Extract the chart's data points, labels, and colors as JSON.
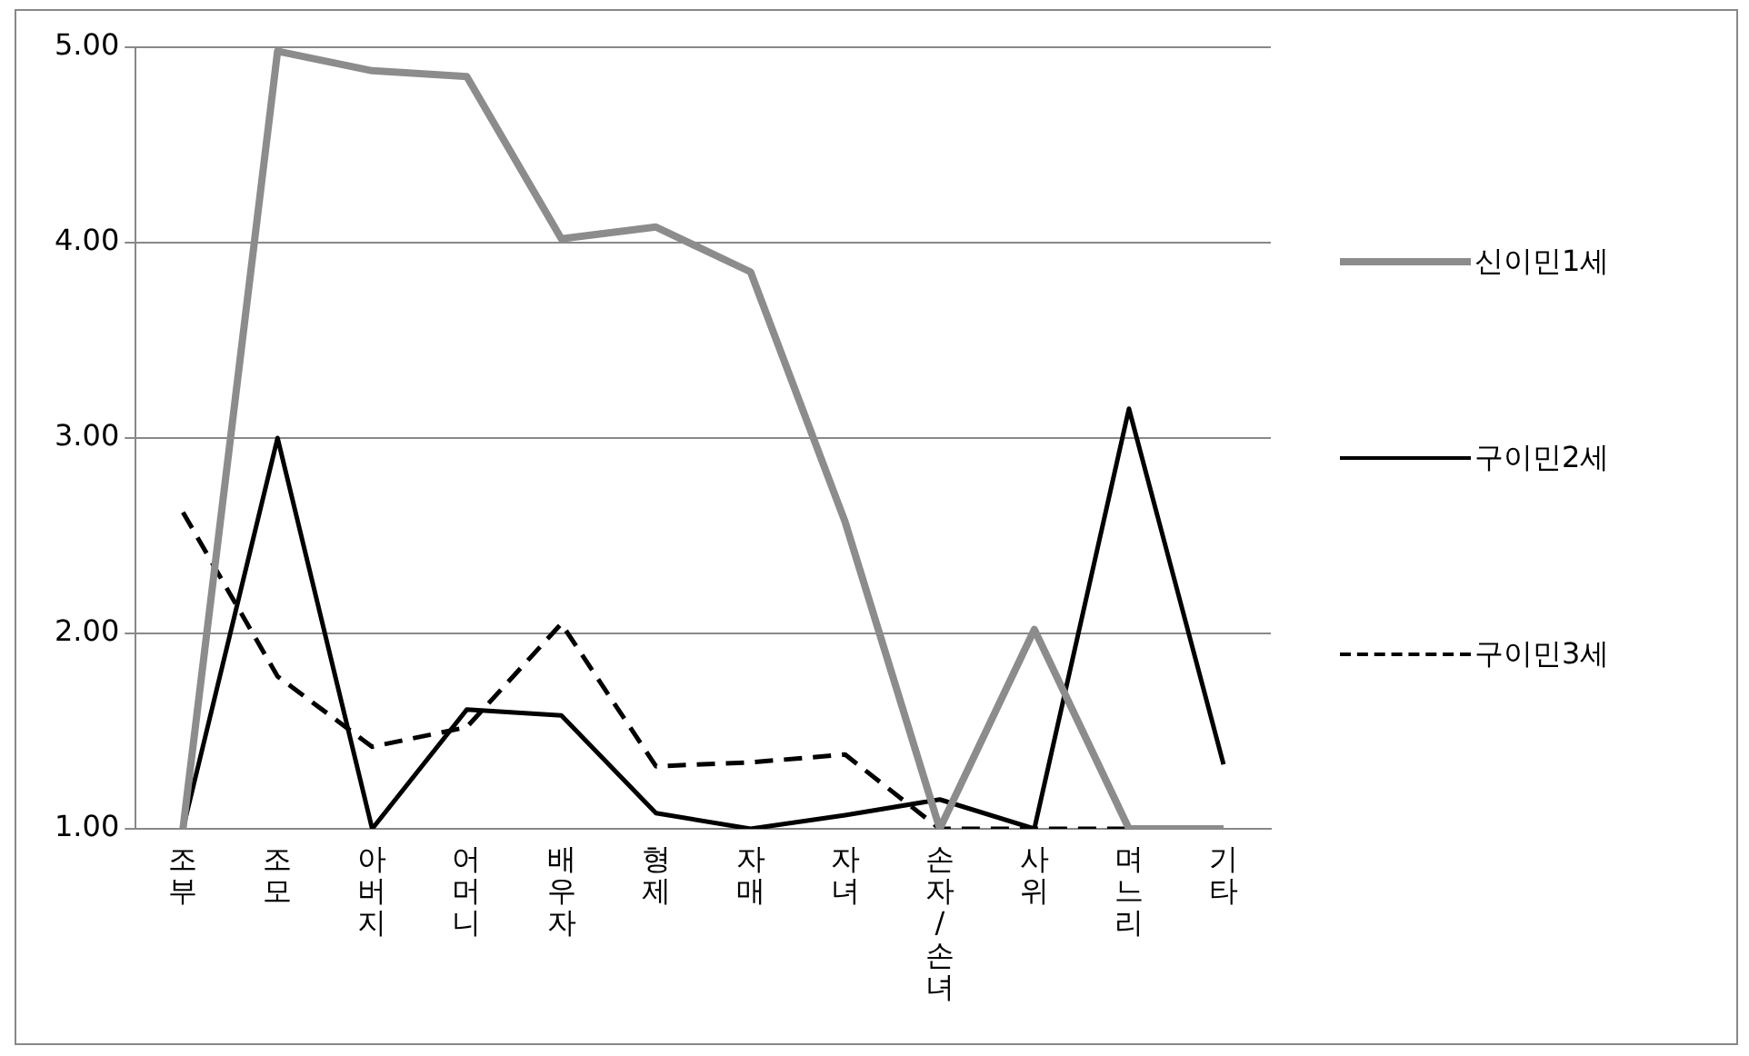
{
  "chart_data": {
    "type": "line",
    "categories": [
      "조부",
      "조모",
      "아버지",
      "어머니",
      "배우자",
      "형제",
      "자매",
      "자녀",
      "손자/손녀",
      "사위",
      "며느리",
      "기타"
    ],
    "series": [
      {
        "name": "신이민1세",
        "color": "#8c8c8c",
        "line_style": "solid",
        "values": [
          1.0,
          4.98,
          4.88,
          4.85,
          4.02,
          4.08,
          3.85,
          2.57,
          1.0,
          2.02,
          1.0,
          1.0
        ]
      },
      {
        "name": "구이민2세",
        "color": "#000000",
        "line_style": "solid",
        "values": [
          1.0,
          3.0,
          1.0,
          1.61,
          1.58,
          1.08,
          1.0,
          1.07,
          1.15,
          1.0,
          3.15,
          1.33
        ]
      },
      {
        "name": "구이민3세",
        "color": "#000000",
        "line_style": "dashed",
        "values": [
          2.62,
          1.78,
          1.42,
          1.52,
          2.05,
          1.32,
          1.34,
          1.38,
          1.0,
          1.0,
          1.0,
          null
        ]
      }
    ],
    "ylim": [
      1,
      5
    ],
    "yticks": [
      {
        "value": 1,
        "label": "1.00"
      },
      {
        "value": 2,
        "label": "2.00"
      },
      {
        "value": 3,
        "label": "3.00"
      },
      {
        "value": 4,
        "label": "4.00"
      },
      {
        "value": 5,
        "label": "5.00"
      }
    ],
    "grid": "y",
    "legend": "right",
    "marker": "none"
  }
}
